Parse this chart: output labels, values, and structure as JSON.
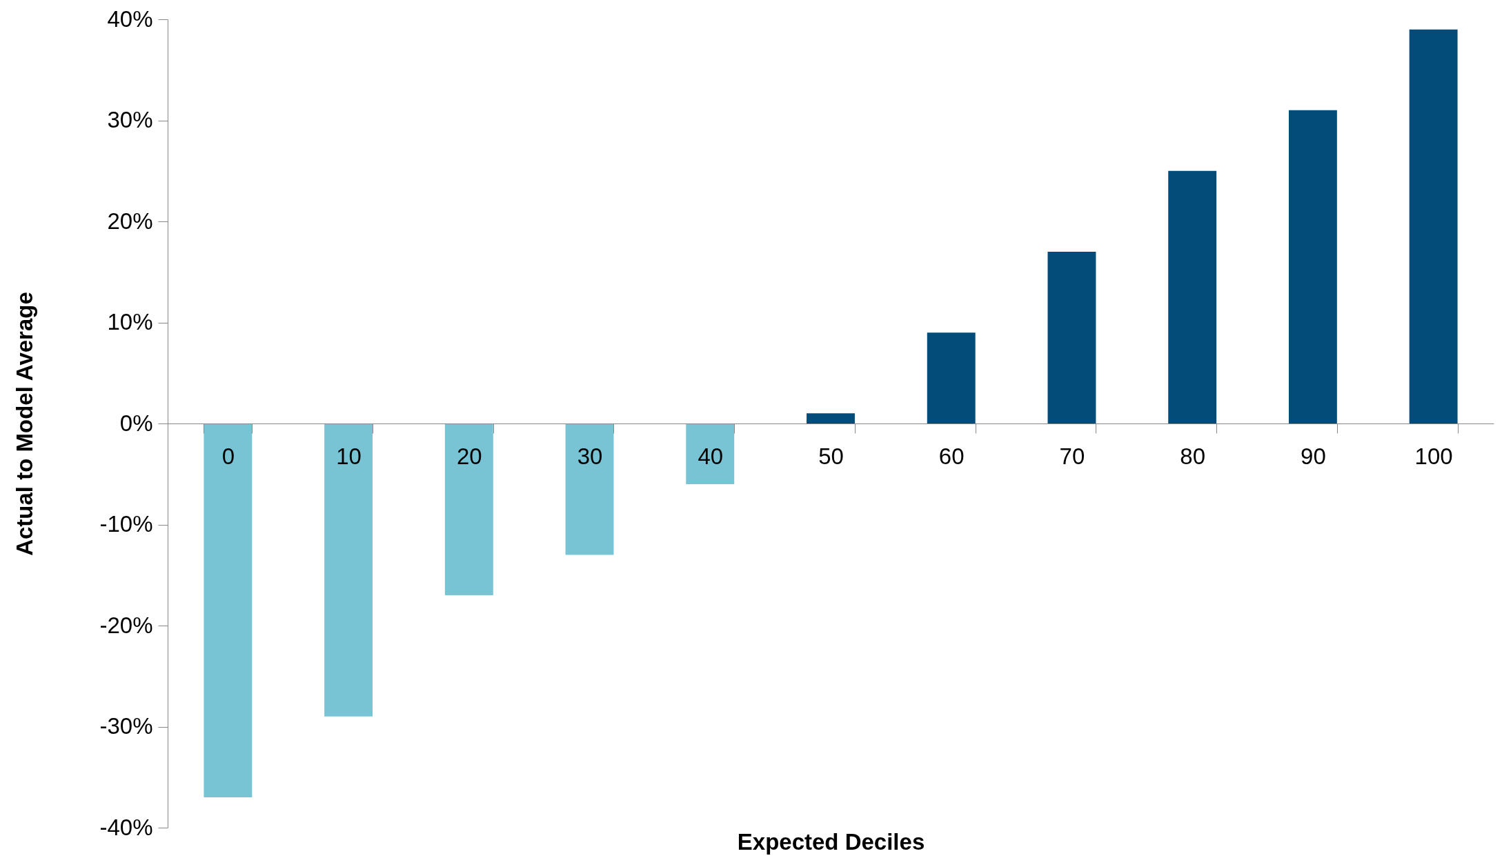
{
  "chart_data": {
    "type": "bar",
    "xlabel": "Expected Deciles",
    "ylabel": "Actual to Model Average",
    "categories": [
      "0",
      "10",
      "20",
      "30",
      "40",
      "50",
      "60",
      "70",
      "80",
      "90",
      "100"
    ],
    "values": [
      -37,
      -29,
      -17,
      -13,
      -6,
      1,
      9,
      17,
      25,
      31,
      39
    ],
    "colors": [
      "#78c3d4",
      "#78c3d4",
      "#78c3d4",
      "#78c3d4",
      "#78c3d4",
      "#034c7a",
      "#034c7a",
      "#034c7a",
      "#034c7a",
      "#034c7a",
      "#034c7a"
    ],
    "ylim": [
      -40,
      40
    ],
    "yticks": [
      {
        "value": -40,
        "label": "-40%"
      },
      {
        "value": -30,
        "label": "-30%"
      },
      {
        "value": -20,
        "label": "-20%"
      },
      {
        "value": -10,
        "label": "-10%"
      },
      {
        "value": 0,
        "label": "0%"
      },
      {
        "value": 10,
        "label": "10%"
      },
      {
        "value": 20,
        "label": "20%"
      },
      {
        "value": 30,
        "label": "30%"
      },
      {
        "value": 40,
        "label": "40%"
      }
    ],
    "grid": false,
    "legend": false
  }
}
